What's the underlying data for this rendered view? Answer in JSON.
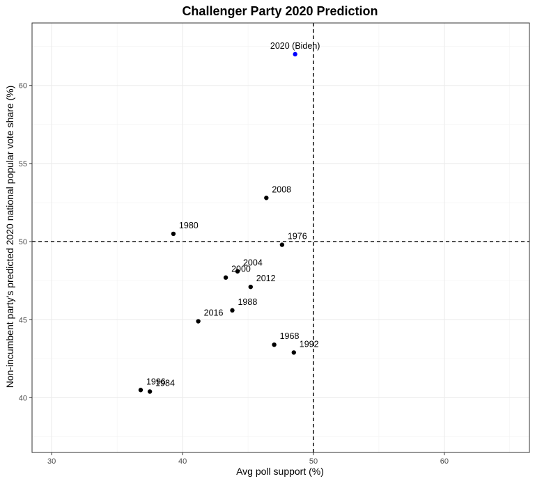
{
  "chart_data": {
    "type": "scatter",
    "title": "Challenger Party 2020 Prediction",
    "xlabel": "Avg poll support (%)",
    "ylabel": "Non-incumbent party's predicted 2020 national popular vote share (%)",
    "xlim": [
      28.5,
      66.5
    ],
    "ylim": [
      36.5,
      64.0
    ],
    "x_ticks": [
      30,
      40,
      50,
      60
    ],
    "y_ticks": [
      40,
      45,
      50,
      55,
      60
    ],
    "reference_lines": {
      "vertical_x": 50,
      "horizontal_y": 50,
      "style": "dashed"
    },
    "grid": true,
    "points": [
      {
        "label": "2020 (Biden)",
        "x": 48.6,
        "y": 62.0,
        "color": "#0000ff"
      },
      {
        "label": "2008",
        "x": 46.4,
        "y": 52.8,
        "color": "#000000"
      },
      {
        "label": "1980",
        "x": 39.3,
        "y": 50.5,
        "color": "#000000"
      },
      {
        "label": "1976",
        "x": 47.6,
        "y": 49.8,
        "color": "#000000"
      },
      {
        "label": "2004",
        "x": 44.2,
        "y": 48.1,
        "color": "#000000"
      },
      {
        "label": "2000",
        "x": 43.3,
        "y": 47.7,
        "color": "#000000"
      },
      {
        "label": "2012",
        "x": 45.2,
        "y": 47.1,
        "color": "#000000"
      },
      {
        "label": "1988",
        "x": 43.8,
        "y": 45.6,
        "color": "#000000"
      },
      {
        "label": "2016",
        "x": 41.2,
        "y": 44.9,
        "color": "#000000"
      },
      {
        "label": "1968",
        "x": 47.0,
        "y": 43.4,
        "color": "#000000"
      },
      {
        "label": "1992",
        "x": 48.5,
        "y": 42.9,
        "color": "#000000"
      },
      {
        "label": "1996",
        "x": 36.8,
        "y": 40.5,
        "color": "#000000"
      },
      {
        "label": "1984",
        "x": 37.5,
        "y": 40.4,
        "color": "#000000"
      }
    ]
  }
}
